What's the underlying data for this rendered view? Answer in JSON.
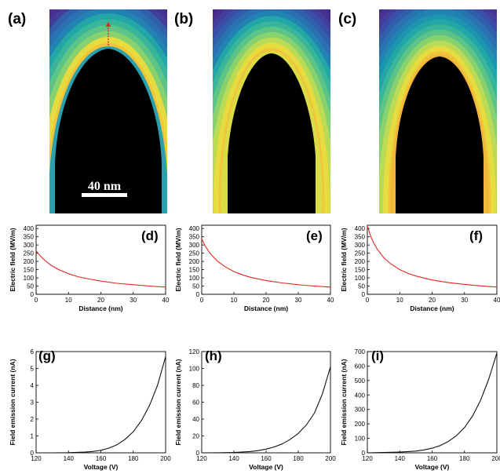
{
  "panel_labels": [
    "(a)",
    "(b)",
    "(c)",
    "(d)",
    "(e)",
    "(f)",
    "(g)",
    "(h)",
    "(i)"
  ],
  "scale_bar": {
    "text": "40 nm"
  },
  "field_maps": [
    {
      "panel": "(a)",
      "max_field": 265
    },
    {
      "panel": "(b)",
      "max_field": 337
    },
    {
      "panel": "(c)",
      "max_field": 415
    }
  ],
  "chart_data": [
    {
      "panel": "(d)",
      "type": "line",
      "xlabel": "Distance (nm)",
      "ylabel": "Electric field (MV/m)",
      "xlim": [
        0,
        40
      ],
      "ylim": [
        0,
        420
      ],
      "xticks": [
        0,
        10,
        20,
        30,
        40
      ],
      "yticks": [
        0,
        50,
        100,
        150,
        200,
        250,
        300,
        350,
        400
      ],
      "color": "#e8251e",
      "x": [
        0,
        1,
        2,
        3,
        5,
        7,
        10,
        13,
        15,
        20,
        25,
        30,
        35,
        40
      ],
      "y": [
        265,
        240,
        219,
        201,
        172,
        150,
        125,
        107,
        98,
        80,
        67,
        58,
        50,
        44
      ]
    },
    {
      "panel": "(e)",
      "type": "line",
      "xlabel": "Distance (nm)",
      "ylabel": "Electric field (MV/m)",
      "xlim": [
        0,
        40
      ],
      "ylim": [
        0,
        420
      ],
      "xticks": [
        0,
        10,
        20,
        30,
        40
      ],
      "yticks": [
        0,
        50,
        100,
        150,
        200,
        250,
        300,
        350,
        400
      ],
      "color": "#e8251e",
      "x": [
        0,
        1,
        2,
        3,
        5,
        7,
        10,
        13,
        15,
        20,
        25,
        30,
        35,
        40
      ],
      "y": [
        337,
        297,
        266,
        240,
        200,
        171,
        138,
        116,
        104,
        83,
        69,
        58,
        50,
        44
      ]
    },
    {
      "panel": "(f)",
      "type": "line",
      "xlabel": "Distance (nm)",
      "ylabel": "Electric field (MV/m)",
      "xlim": [
        0,
        40
      ],
      "ylim": [
        0,
        420
      ],
      "xticks": [
        0,
        10,
        20,
        30,
        40
      ],
      "yticks": [
        0,
        50,
        100,
        150,
        200,
        250,
        300,
        350,
        400
      ],
      "color": "#e8251e",
      "x": [
        0,
        1,
        2,
        3,
        5,
        7,
        10,
        13,
        15,
        20,
        25,
        30,
        35,
        40
      ],
      "y": [
        415,
        355,
        310,
        276,
        225,
        188,
        150,
        124,
        111,
        87,
        71,
        60,
        51,
        44
      ]
    },
    {
      "panel": "(g)",
      "type": "line",
      "xlabel": "Voltage (V)",
      "ylabel": "Field emission current (nA)",
      "xlim": [
        120,
        200
      ],
      "ylim": [
        0,
        6
      ],
      "xticks": [
        120,
        140,
        160,
        180,
        200
      ],
      "yticks": [
        0,
        1,
        2,
        3,
        4,
        5,
        6
      ],
      "color": "#111111",
      "x": [
        120,
        130,
        140,
        150,
        155,
        160,
        165,
        170,
        175,
        180,
        185,
        190,
        195,
        200
      ],
      "y": [
        0.0,
        0.0,
        0.01,
        0.04,
        0.08,
        0.15,
        0.28,
        0.48,
        0.8,
        1.25,
        1.9,
        2.8,
        4.0,
        5.7
      ]
    },
    {
      "panel": "(h)",
      "type": "line",
      "xlabel": "Voltage (V)",
      "ylabel": "Field emission current (nA)",
      "xlim": [
        120,
        200
      ],
      "ylim": [
        0,
        120
      ],
      "xticks": [
        120,
        140,
        160,
        180,
        200
      ],
      "yticks": [
        0,
        20,
        40,
        60,
        80,
        100,
        120
      ],
      "color": "#111111",
      "x": [
        120,
        130,
        140,
        150,
        155,
        160,
        165,
        170,
        175,
        180,
        185,
        190,
        195,
        200
      ],
      "y": [
        0.0,
        0.1,
        0.5,
        1.5,
        2.6,
        4.4,
        7.0,
        10.5,
        16.0,
        23.0,
        33.0,
        47.0,
        70.0,
        102.0
      ]
    },
    {
      "panel": "(i)",
      "type": "line",
      "xlabel": "Voltage (V)",
      "ylabel": "Field emission current (nA)",
      "xlim": [
        120,
        200
      ],
      "ylim": [
        0,
        700
      ],
      "xticks": [
        120,
        140,
        160,
        180,
        200
      ],
      "yticks": [
        0,
        100,
        200,
        300,
        400,
        500,
        600,
        700
      ],
      "color": "#111111",
      "x": [
        120,
        130,
        140,
        150,
        155,
        160,
        165,
        170,
        175,
        180,
        185,
        190,
        195,
        200
      ],
      "y": [
        0,
        2,
        5,
        12,
        20,
        32,
        50,
        78,
        118,
        175,
        255,
        365,
        510,
        690
      ]
    }
  ]
}
